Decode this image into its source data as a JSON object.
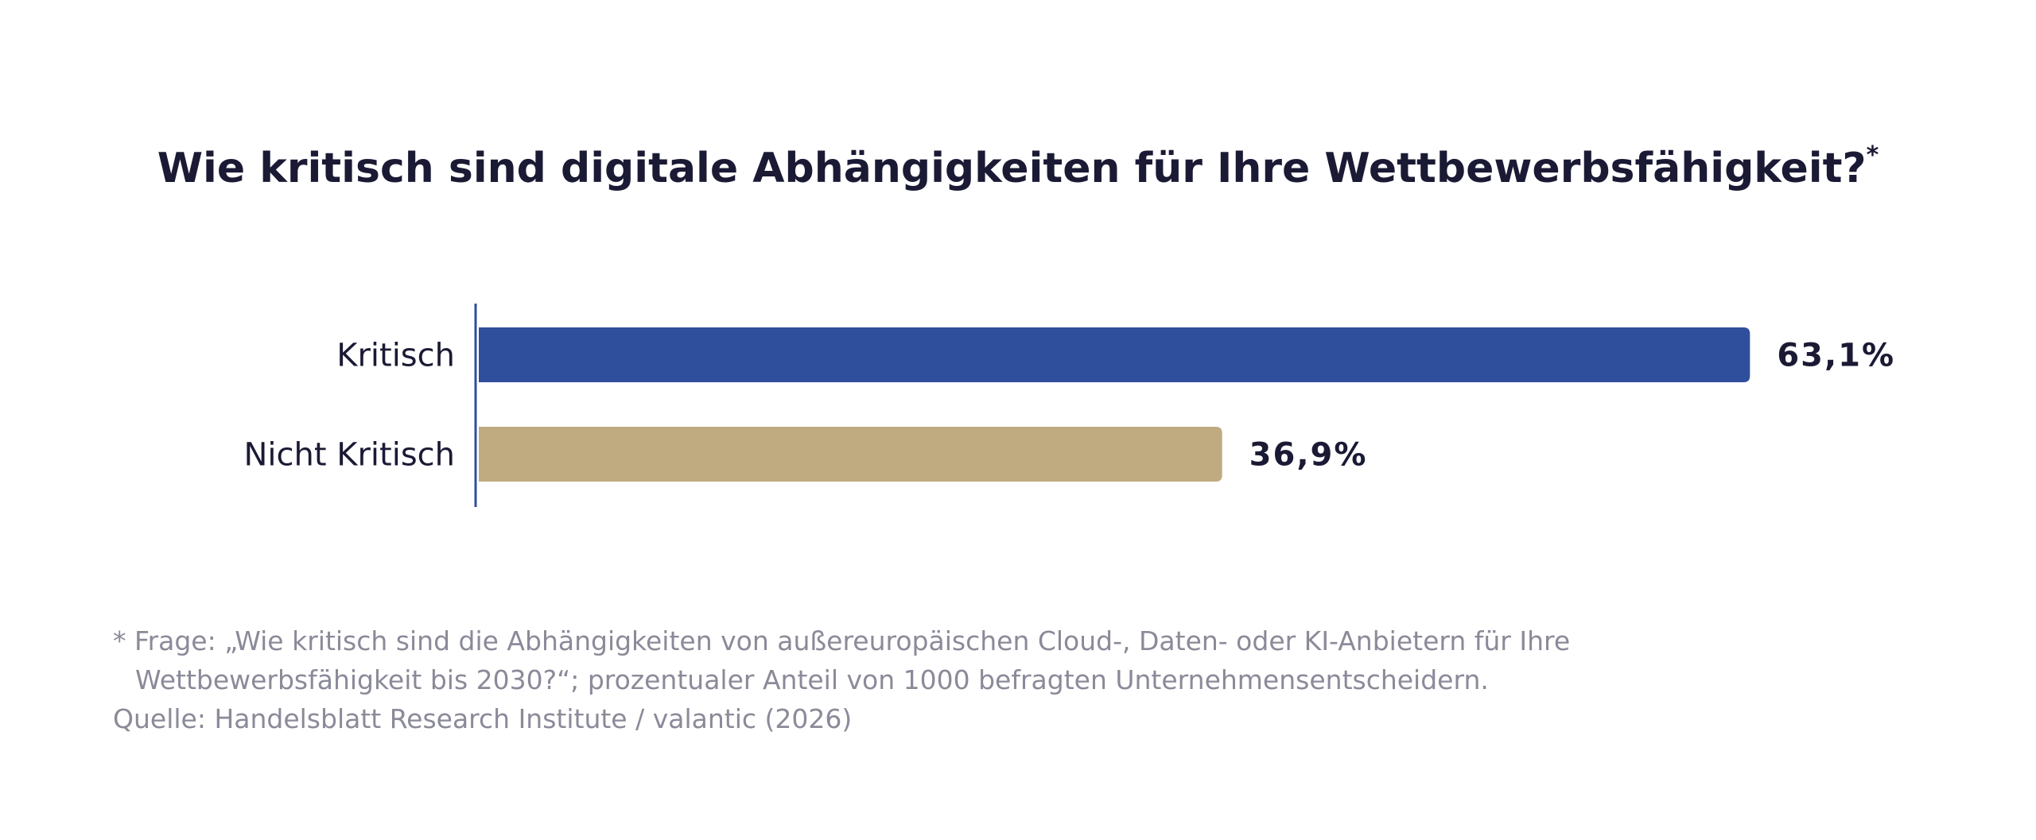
{
  "chart_data": {
    "type": "bar",
    "orientation": "horizontal",
    "title": "Wie kritisch sind digitale Abhängigkeiten für Ihre Wettbewerbsfähigkeit?",
    "title_marker": "*",
    "categories": [
      "Kritisch",
      "Nicht Kritisch"
    ],
    "values": [
      63.1,
      36.9
    ],
    "value_labels": [
      "63,1%",
      "36,9%"
    ],
    "colors": [
      "#2f4f9c",
      "#c0aa80"
    ],
    "axis_color": "#2f4f9c",
    "xlabel": "",
    "ylabel": "",
    "xlim": [
      0,
      100
    ],
    "grid": false,
    "legend": "none"
  },
  "footnote": {
    "line1": "* Frage: „Wie kritisch sind die Abhängigkeiten von außereuropäischen Cloud-, Daten- oder KI-Anbietern für Ihre",
    "line2": "Wettbewerbsfähigkeit bis 2030?“; prozentualer Anteil von 1000 befragten Unternehmensentscheidern.",
    "source": "Quelle: Handelsblatt Research Institute / valantic (2026)"
  }
}
